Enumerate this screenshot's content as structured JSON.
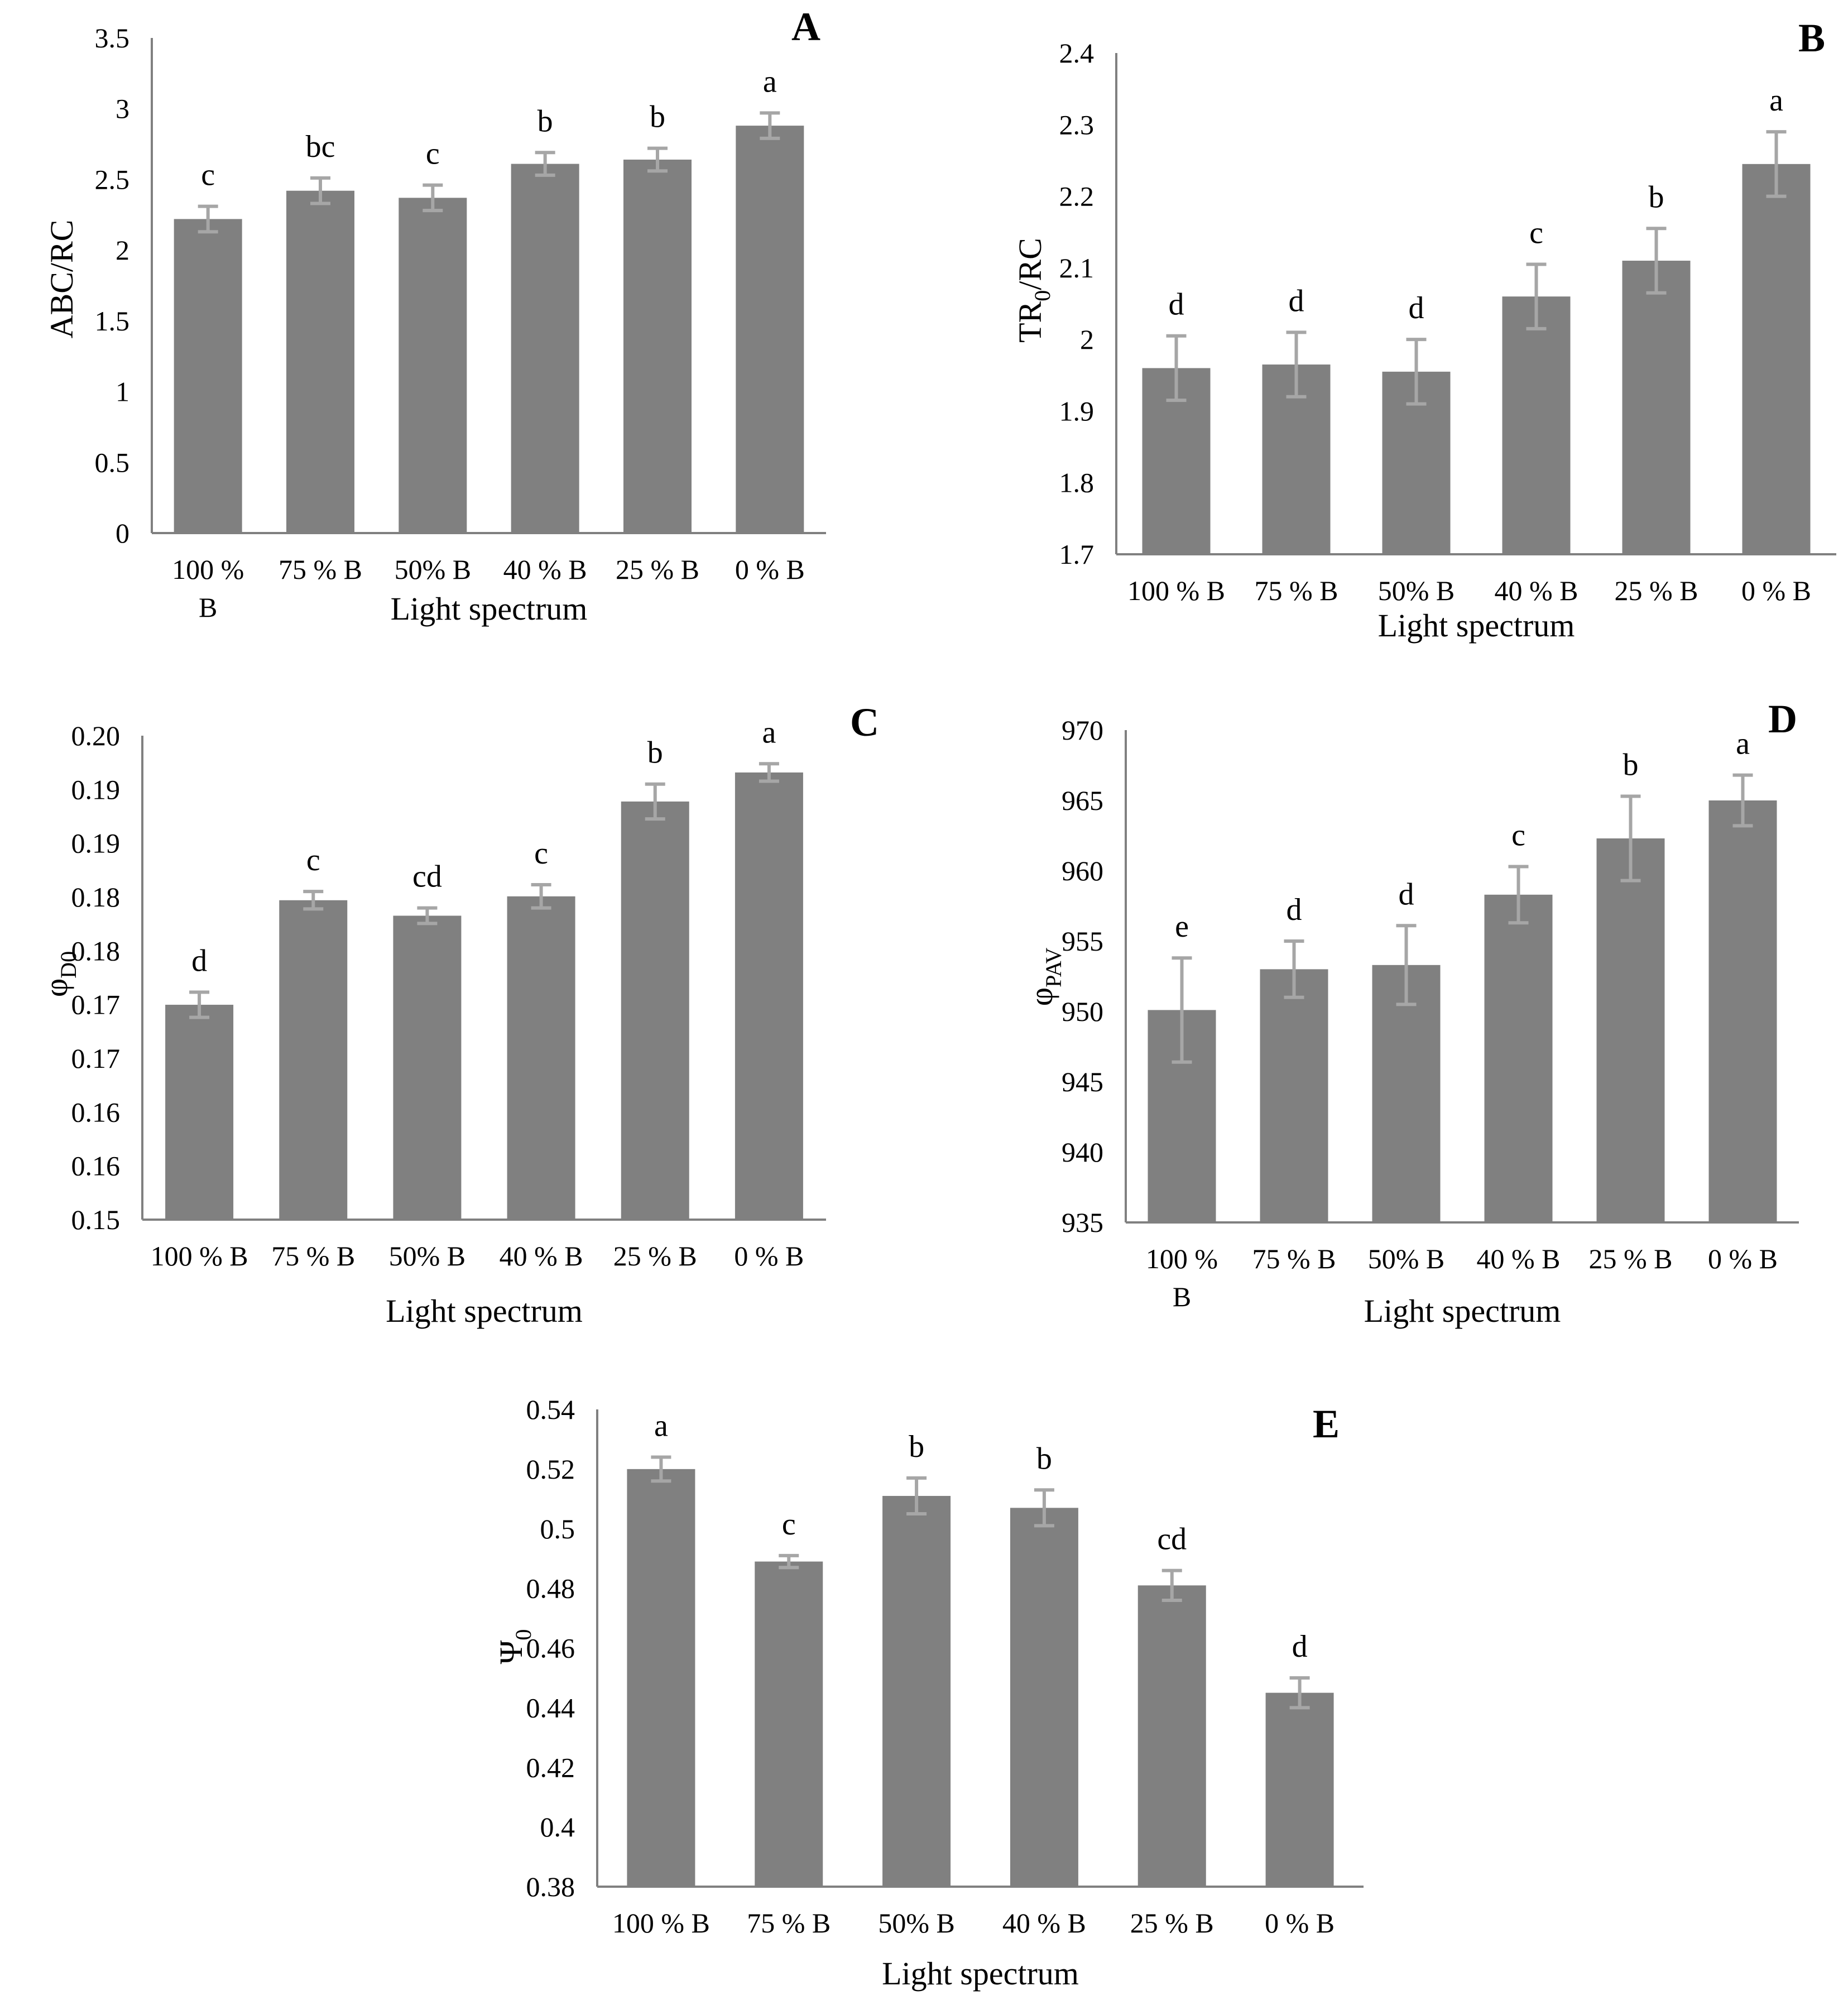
{
  "colors": {
    "bar": "#808080",
    "axis": "#808080",
    "error_bar": "#a6a6a6",
    "text": "#000000"
  },
  "chart_data": [
    {
      "panel": "A",
      "type": "bar",
      "title": "",
      "xlabel": "Light spectrum",
      "ylabel": "ABC/RC",
      "ylim": [
        0,
        3.5
      ],
      "yticks": [
        {
          "value": 0,
          "label": "0"
        },
        {
          "value": 0.5,
          "label": "0.5"
        },
        {
          "value": 1,
          "label": "1"
        },
        {
          "value": 1.5,
          "label": "1.5"
        },
        {
          "value": 2,
          "label": "2"
        },
        {
          "value": 2.5,
          "label": "2.5"
        },
        {
          "value": 3,
          "label": "3"
        },
        {
          "value": 3.5,
          "label": "3.5"
        }
      ],
      "categories": [
        [
          "100 %",
          "B"
        ],
        [
          "75 % B"
        ],
        [
          "50% B"
        ],
        [
          "40 % B"
        ],
        [
          "25 % B"
        ],
        [
          "0 % B"
        ]
      ],
      "values": [
        2.22,
        2.42,
        2.37,
        2.61,
        2.64,
        2.88
      ],
      "errors": [
        0.09,
        0.09,
        0.09,
        0.08,
        0.08,
        0.09
      ],
      "letters": [
        "c",
        "bc",
        "c",
        "b",
        "b",
        "a"
      ]
    },
    {
      "panel": "B",
      "type": "bar",
      "title": "",
      "xlabel": "Light spectrum",
      "ylabel": "TR",
      "ylabel_sub": "0",
      "ylabel_rest": "/RC",
      "ylim": [
        1.7,
        2.4
      ],
      "yticks": [
        {
          "value": 1.7,
          "label": "1.7"
        },
        {
          "value": 1.8,
          "label": "1.8"
        },
        {
          "value": 1.9,
          "label": "1.9"
        },
        {
          "value": 2.0,
          "label": "2"
        },
        {
          "value": 2.1,
          "label": "2.1"
        },
        {
          "value": 2.2,
          "label": "2.2"
        },
        {
          "value": 2.3,
          "label": "2.3"
        },
        {
          "value": 2.4,
          "label": "2.4"
        }
      ],
      "categories": [
        [
          "100 % B"
        ],
        [
          "75 % B"
        ],
        [
          "50% B"
        ],
        [
          "40 % B"
        ],
        [
          "25 % B"
        ],
        [
          "0 % B"
        ]
      ],
      "values": [
        1.96,
        1.965,
        1.955,
        2.06,
        2.11,
        2.245
      ],
      "errors": [
        0.045,
        0.045,
        0.045,
        0.045,
        0.045,
        0.045
      ],
      "letters": [
        "d",
        "d",
        "d",
        "c",
        "b",
        "a"
      ]
    },
    {
      "panel": "C",
      "type": "bar",
      "title": "",
      "xlabel": "Light spectrum",
      "ylabel": "φ",
      "ylabel_sub": "D0",
      "ylabel_rest": "",
      "ylim": [
        0.15,
        0.2
      ],
      "yticks": [
        {
          "value": 0.15,
          "label": "0.15"
        },
        {
          "value": 0.15556,
          "label": "0.16"
        },
        {
          "value": 0.16111,
          "label": "0.16"
        },
        {
          "value": 0.16667,
          "label": "0.17"
        },
        {
          "value": 0.17222,
          "label": "0.17"
        },
        {
          "value": 0.17778,
          "label": "0.18"
        },
        {
          "value": 0.18333,
          "label": "0.18"
        },
        {
          "value": 0.18889,
          "label": "0.19"
        },
        {
          "value": 0.19444,
          "label": "0.19"
        },
        {
          "value": 0.2,
          "label": "0.20"
        }
      ],
      "categories": [
        [
          "100 % B"
        ],
        [
          "75 % B"
        ],
        [
          "50% B"
        ],
        [
          "40 % B"
        ],
        [
          "25 % B"
        ],
        [
          "0 % B"
        ]
      ],
      "values": [
        0.1722,
        0.183,
        0.1814,
        0.1834,
        0.1932,
        0.1962
      ],
      "errors": [
        0.0013,
        0.0009,
        0.0008,
        0.0012,
        0.0018,
        0.0009
      ],
      "letters": [
        "d",
        "c",
        "cd",
        "c",
        "b",
        "a"
      ]
    },
    {
      "panel": "D",
      "type": "bar",
      "title": "",
      "xlabel": "Light spectrum",
      "ylabel": "φ",
      "ylabel_sub": "PAV",
      "ylabel_rest": "",
      "ylim": [
        935,
        970
      ],
      "yticks": [
        {
          "value": 935,
          "label": "935"
        },
        {
          "value": 940,
          "label": "940"
        },
        {
          "value": 945,
          "label": "945"
        },
        {
          "value": 950,
          "label": "950"
        },
        {
          "value": 955,
          "label": "955"
        },
        {
          "value": 960,
          "label": "960"
        },
        {
          "value": 965,
          "label": "965"
        },
        {
          "value": 970,
          "label": "970"
        }
      ],
      "categories": [
        [
          "100 %",
          "B"
        ],
        [
          "75 % B"
        ],
        [
          "50% B"
        ],
        [
          "40 % B"
        ],
        [
          "25 % B"
        ],
        [
          "0 % B"
        ]
      ],
      "values": [
        950.1,
        953.0,
        953.3,
        958.3,
        962.3,
        965.0
      ],
      "errors": [
        3.7,
        2.0,
        2.8,
        2.0,
        3.0,
        1.8
      ],
      "letters": [
        "e",
        "d",
        "d",
        "c",
        "b",
        "a"
      ]
    },
    {
      "panel": "E",
      "type": "bar",
      "title": "",
      "xlabel": "Light spectrum",
      "ylabel": "Ψ",
      "ylabel_sub": "0",
      "ylabel_rest": "",
      "ylim": [
        0.38,
        0.54
      ],
      "yticks": [
        {
          "value": 0.38,
          "label": "0.38"
        },
        {
          "value": 0.4,
          "label": "0.4"
        },
        {
          "value": 0.42,
          "label": "0.42"
        },
        {
          "value": 0.44,
          "label": "0.44"
        },
        {
          "value": 0.46,
          "label": "0.46"
        },
        {
          "value": 0.48,
          "label": "0.48"
        },
        {
          "value": 0.5,
          "label": "0.5"
        },
        {
          "value": 0.52,
          "label": "0.52"
        },
        {
          "value": 0.54,
          "label": "0.54"
        }
      ],
      "categories": [
        [
          "100 % B"
        ],
        [
          "75 % B"
        ],
        [
          "50% B"
        ],
        [
          "40 % B"
        ],
        [
          "25 % B"
        ],
        [
          "0 % B"
        ]
      ],
      "values": [
        0.52,
        0.489,
        0.511,
        0.507,
        0.481,
        0.445
      ],
      "errors": [
        0.004,
        0.002,
        0.006,
        0.006,
        0.005,
        0.005
      ],
      "letters": [
        "a",
        "c",
        "b",
        "b",
        "cd",
        "d"
      ]
    }
  ]
}
